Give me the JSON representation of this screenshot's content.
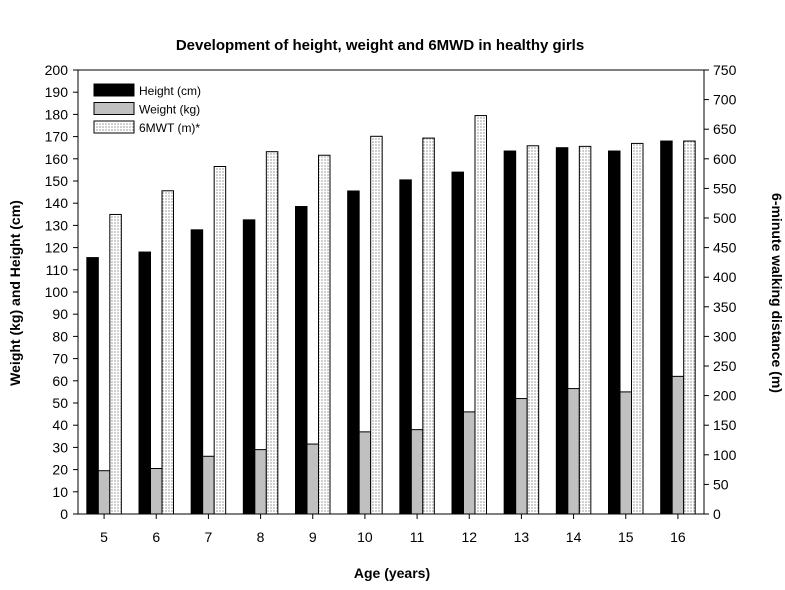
{
  "chart_data": {
    "type": "bar",
    "title": "Development of height, weight and 6MWD in healthy girls",
    "xlabel": "Age (years)",
    "ylabel_left": "Weight (kg) and Height (cm)",
    "ylabel_right": "6-minute walking distance (m)",
    "categories": [
      "5",
      "6",
      "7",
      "8",
      "9",
      "10",
      "11",
      "12",
      "13",
      "14",
      "15",
      "16"
    ],
    "ylim_left": [
      0,
      200
    ],
    "ylim_right": [
      0,
      750
    ],
    "yticks_left": [
      0,
      10,
      20,
      30,
      40,
      50,
      60,
      70,
      80,
      90,
      100,
      110,
      120,
      130,
      140,
      150,
      160,
      170,
      180,
      190,
      200
    ],
    "yticks_right": [
      0,
      50,
      100,
      150,
      200,
      250,
      300,
      350,
      400,
      450,
      500,
      550,
      600,
      650,
      700,
      750
    ],
    "grid": false,
    "legend_position": "top-left",
    "series": [
      {
        "name": "Height (cm)",
        "axis": "left",
        "fill": "#000000",
        "values": [
          115.5,
          118,
          128,
          132.5,
          138.5,
          145.5,
          150.5,
          154,
          163.5,
          165,
          163.5,
          168
        ]
      },
      {
        "name": "Weight (kg)",
        "axis": "left",
        "fill": "#c0c0c0",
        "values": [
          19.5,
          20.5,
          26,
          29,
          31.5,
          37,
          38,
          46,
          52,
          56.5,
          55,
          62
        ]
      },
      {
        "name": "6MWT (m)*",
        "axis": "right",
        "fill": "dotted",
        "values": [
          506,
          546,
          587,
          612,
          606,
          638,
          635,
          673,
          622,
          621,
          626,
          630
        ]
      }
    ]
  }
}
